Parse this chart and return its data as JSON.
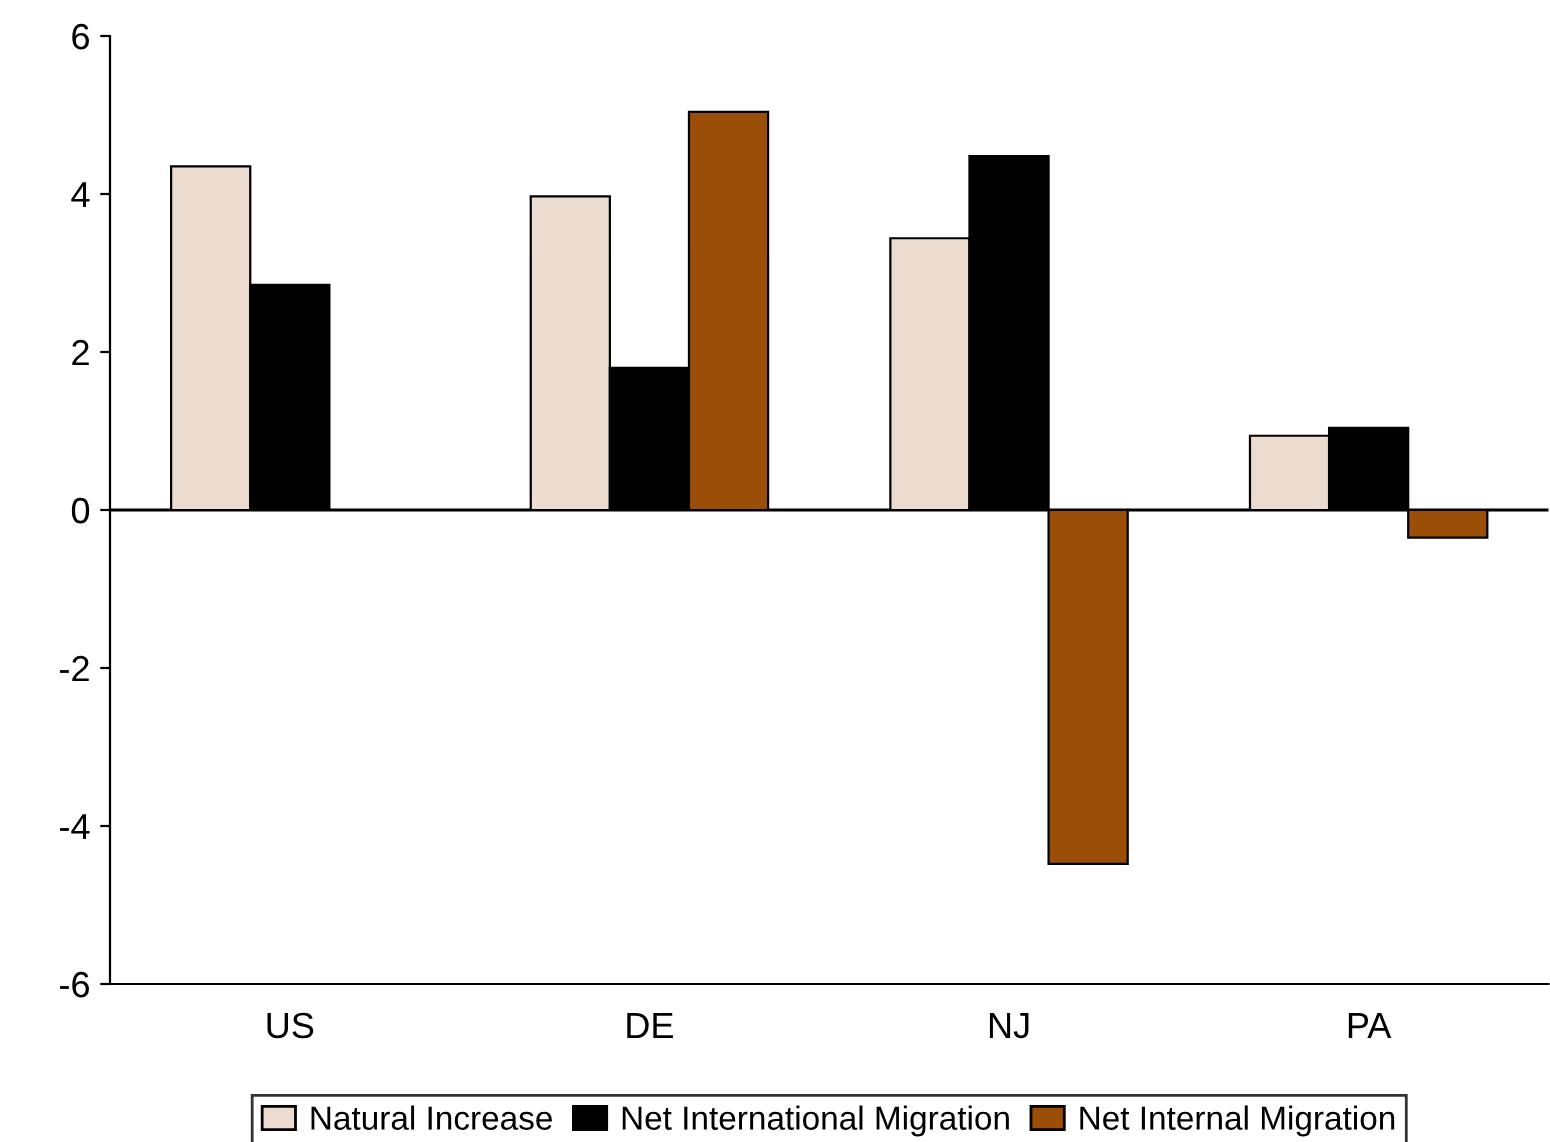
{
  "chart_data": {
    "type": "bar",
    "categories": [
      "US",
      "DE",
      "NJ",
      "PA"
    ],
    "series": [
      {
        "name": "Natural Increase",
        "color": "#ecdcd0",
        "values": [
          4.35,
          3.97,
          3.44,
          0.94
        ]
      },
      {
        "name": "Net International Migration",
        "color": "#000000",
        "values": [
          2.85,
          1.8,
          4.48,
          1.04
        ]
      },
      {
        "name": "Net Internal Migration",
        "color": "#9a4e08",
        "values": [
          null,
          5.04,
          -4.48,
          -0.35
        ]
      }
    ],
    "ylim": [
      -6,
      6
    ],
    "yticks": [
      -6,
      -4,
      -2,
      0,
      2,
      4,
      6
    ],
    "grid": false,
    "legend": "bottom",
    "ref_lines": [
      {
        "axis": "y",
        "value": 0,
        "color": "#000000"
      }
    ]
  }
}
